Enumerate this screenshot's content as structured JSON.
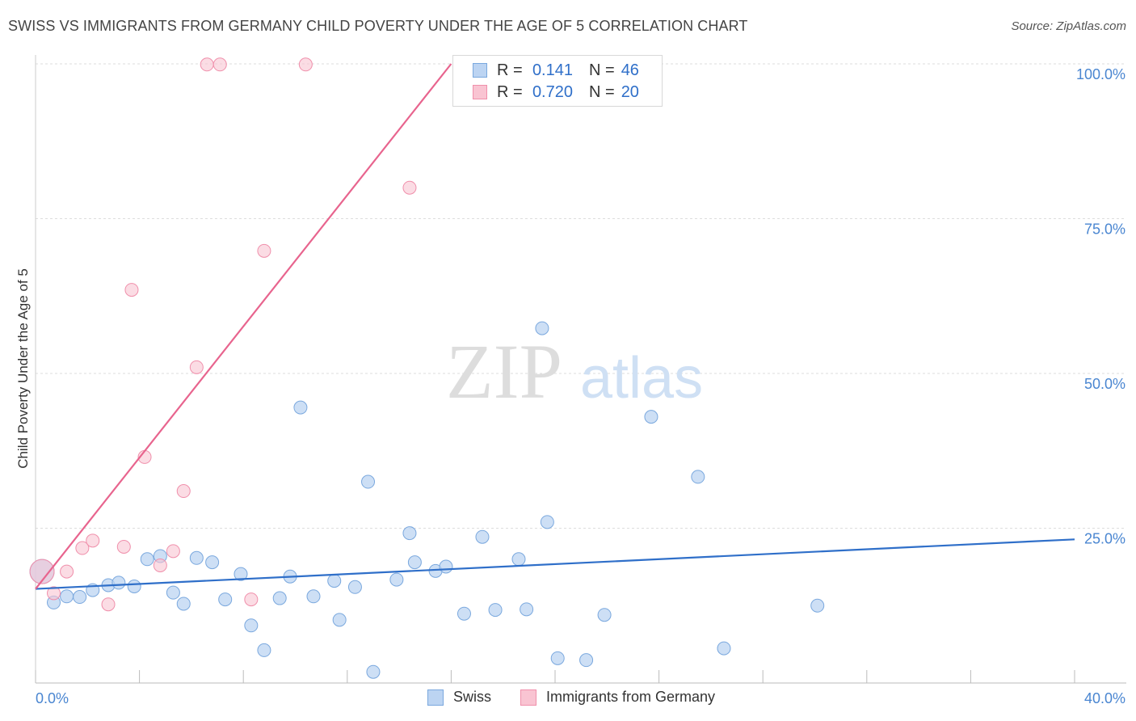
{
  "title": "SWISS VS IMMIGRANTS FROM GERMANY CHILD POVERTY UNDER THE AGE OF 5 CORRELATION CHART",
  "source": "Source: ZipAtlas.com",
  "watermark": {
    "zip": "ZIP",
    "atlas": "atlas"
  },
  "colors": {
    "swiss_fill": "#bcd4f2",
    "swiss_stroke": "#7aa8de",
    "swiss_line": "#2f6fc9",
    "germany_fill": "#f9c4d2",
    "germany_stroke": "#f08fab",
    "germany_line": "#e8648e",
    "tick_label": "#4a86d1",
    "grid": "#dddddd"
  },
  "legend": {
    "rows": [
      {
        "r_label": "R =",
        "r_value": "0.141",
        "n_label": "N =",
        "n_value": "46"
      },
      {
        "r_label": "R =",
        "r_value": "0.720",
        "n_label": "N =",
        "n_value": "20"
      }
    ]
  },
  "chart_data": {
    "type": "scatter",
    "title": "SWISS VS IMMIGRANTS FROM GERMANY CHILD POVERTY UNDER THE AGE OF 5 CORRELATION CHART",
    "xlabel": "",
    "ylabel": "Child Poverty Under the Age of 5",
    "xlim": [
      0,
      40
    ],
    "ylim": [
      0,
      100
    ],
    "x_tick_labels": [
      "0.0%",
      "40.0%"
    ],
    "y_ticks": [
      25,
      50,
      75,
      100
    ],
    "y_tick_labels": [
      "25.0%",
      "50.0%",
      "75.0%",
      "100.0%"
    ],
    "grid": true,
    "legend_position": "bottom",
    "series": [
      {
        "name": "Swiss",
        "points": [
          {
            "x": 0.25,
            "y": 18.0,
            "big": true
          },
          {
            "x": 0.7,
            "y": 13.0
          },
          {
            "x": 1.2,
            "y": 14.0
          },
          {
            "x": 1.7,
            "y": 13.9
          },
          {
            "x": 2.2,
            "y": 15.0
          },
          {
            "x": 2.8,
            "y": 15.8
          },
          {
            "x": 3.2,
            "y": 16.2
          },
          {
            "x": 3.8,
            "y": 15.6
          },
          {
            "x": 4.3,
            "y": 20.0
          },
          {
            "x": 4.8,
            "y": 20.5
          },
          {
            "x": 5.3,
            "y": 14.6
          },
          {
            "x": 5.7,
            "y": 12.8
          },
          {
            "x": 6.2,
            "y": 20.2
          },
          {
            "x": 6.8,
            "y": 19.5
          },
          {
            "x": 7.3,
            "y": 13.5
          },
          {
            "x": 7.9,
            "y": 17.6
          },
          {
            "x": 8.3,
            "y": 9.3
          },
          {
            "x": 8.8,
            "y": 5.3
          },
          {
            "x": 9.4,
            "y": 13.7
          },
          {
            "x": 9.8,
            "y": 17.2
          },
          {
            "x": 10.2,
            "y": 44.5
          },
          {
            "x": 10.7,
            "y": 14.0
          },
          {
            "x": 11.5,
            "y": 16.5
          },
          {
            "x": 11.7,
            "y": 10.2
          },
          {
            "x": 12.3,
            "y": 15.5
          },
          {
            "x": 12.8,
            "y": 32.5
          },
          {
            "x": 13.0,
            "y": 1.8
          },
          {
            "x": 13.9,
            "y": 16.7
          },
          {
            "x": 14.4,
            "y": 24.2
          },
          {
            "x": 14.6,
            "y": 19.5
          },
          {
            "x": 15.4,
            "y": 18.1
          },
          {
            "x": 15.8,
            "y": 18.8
          },
          {
            "x": 16.5,
            "y": 11.2
          },
          {
            "x": 17.2,
            "y": 23.6
          },
          {
            "x": 17.7,
            "y": 11.8
          },
          {
            "x": 18.6,
            "y": 20.0
          },
          {
            "x": 18.9,
            "y": 11.9
          },
          {
            "x": 19.5,
            "y": 57.3
          },
          {
            "x": 19.7,
            "y": 26.0
          },
          {
            "x": 20.1,
            "y": 4.0
          },
          {
            "x": 21.2,
            "y": 3.7
          },
          {
            "x": 21.9,
            "y": 11.0
          },
          {
            "x": 23.7,
            "y": 43.0
          },
          {
            "x": 25.5,
            "y": 33.3
          },
          {
            "x": 26.5,
            "y": 5.6
          },
          {
            "x": 30.1,
            "y": 12.5
          }
        ],
        "trend": {
          "x": [
            0,
            40
          ],
          "y": [
            15.2,
            23.2
          ]
        }
      },
      {
        "name": "Immigrants from Germany",
        "points": [
          {
            "x": 0.25,
            "y": 18.0,
            "big": true
          },
          {
            "x": 0.7,
            "y": 14.5
          },
          {
            "x": 1.2,
            "y": 18.0
          },
          {
            "x": 1.8,
            "y": 21.8
          },
          {
            "x": 2.2,
            "y": 23.0
          },
          {
            "x": 2.8,
            "y": 12.7
          },
          {
            "x": 3.4,
            "y": 22.0
          },
          {
            "x": 3.7,
            "y": 63.5
          },
          {
            "x": 4.2,
            "y": 36.5
          },
          {
            "x": 4.8,
            "y": 19.0
          },
          {
            "x": 5.3,
            "y": 21.3
          },
          {
            "x": 5.7,
            "y": 31.0
          },
          {
            "x": 6.2,
            "y": 51.0
          },
          {
            "x": 6.6,
            "y": 99.9
          },
          {
            "x": 7.1,
            "y": 99.9
          },
          {
            "x": 8.3,
            "y": 13.5
          },
          {
            "x": 8.8,
            "y": 69.8
          },
          {
            "x": 10.4,
            "y": 99.9
          },
          {
            "x": 14.4,
            "y": 80.0
          },
          {
            "x": 18.3,
            "y": 99.9
          }
        ],
        "trend": {
          "x": [
            0,
            16.0
          ],
          "y": [
            15.2,
            100
          ]
        }
      }
    ]
  }
}
